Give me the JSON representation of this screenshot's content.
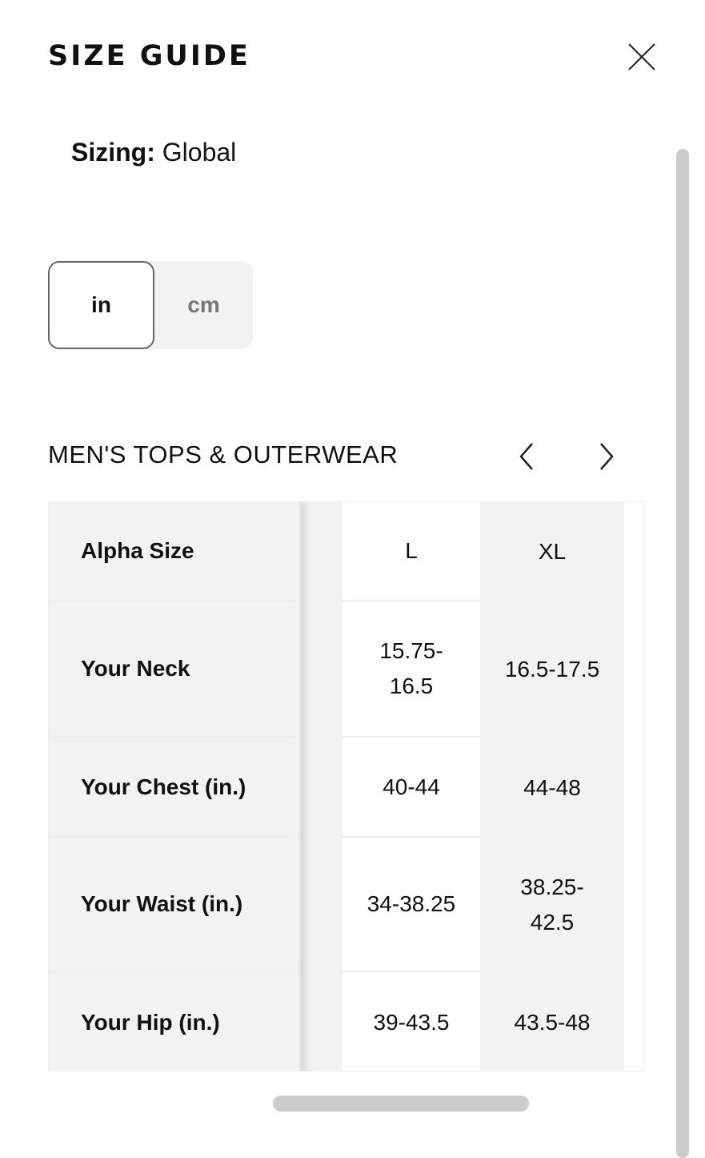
{
  "header": {
    "title": "SIZE GUIDE",
    "close_icon": "close-icon"
  },
  "sizing": {
    "label": "Sizing:",
    "value": "Global"
  },
  "units": {
    "options": [
      "in",
      "cm"
    ],
    "selected": "in"
  },
  "section": {
    "title": "MEN'S TOPS & OUTERWEAR",
    "prev_icon": "chevron-left-icon",
    "next_icon": "chevron-right-icon"
  },
  "table": {
    "row_headers": [
      "Alpha Size",
      "Your Neck",
      "Your Chest (in.)",
      "Your Waist (in.)",
      "Your Hip (in.)"
    ],
    "columns": [
      {
        "values": [
          "L",
          "15.75-16.5",
          "40-44",
          "34-38.25",
          "39-43.5"
        ]
      },
      {
        "values": [
          "XL",
          "16.5-17.5",
          "44-48",
          "38.25-42.5",
          "43.5-48"
        ]
      }
    ]
  },
  "colors": {
    "cell_gray": "#f2f2f2",
    "scrollbar": "#cccccc"
  }
}
